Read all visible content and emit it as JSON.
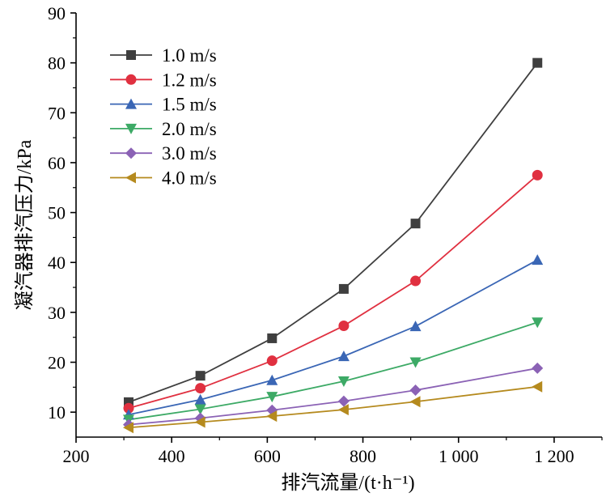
{
  "chart_data": {
    "type": "line",
    "xlabel": "排汽流量/(t·h⁻¹)",
    "ylabel": "凝汽器排汽压力/kPa",
    "xlim": [
      200,
      1300
    ],
    "ylim": [
      5,
      90
    ],
    "x_ticks": [
      200,
      400,
      600,
      800,
      1000,
      1200
    ],
    "x_tick_labels": [
      "200",
      "400",
      "600",
      "800",
      "1 000",
      "1 200"
    ],
    "y_ticks": [
      10,
      20,
      30,
      40,
      50,
      60,
      70,
      80,
      90
    ],
    "y_tick_labels": [
      "10",
      "20",
      "30",
      "40",
      "50",
      "60",
      "70",
      "80",
      "90"
    ],
    "x": [
      310,
      460,
      610,
      760,
      910,
      1165
    ],
    "legend_position": "top-left",
    "series": [
      {
        "name": "1.0 m/s",
        "color": "#3f3f3f",
        "marker": "square",
        "values": [
          12.0,
          17.3,
          24.8,
          34.7,
          47.8,
          80.0
        ]
      },
      {
        "name": "1.2 m/s",
        "color": "#e03040",
        "marker": "circle",
        "values": [
          10.8,
          14.8,
          20.3,
          27.3,
          36.3,
          57.5
        ]
      },
      {
        "name": "1.5 m/s",
        "color": "#3a66b5",
        "marker": "triangle-up",
        "values": [
          9.5,
          12.5,
          16.4,
          21.2,
          27.2,
          40.5
        ]
      },
      {
        "name": "2.0 m/s",
        "color": "#3daa66",
        "marker": "triangle-down",
        "values": [
          8.5,
          10.6,
          13.1,
          16.2,
          20.0,
          28.0
        ]
      },
      {
        "name": "3.0 m/s",
        "color": "#8b62b5",
        "marker": "diamond",
        "values": [
          7.5,
          8.8,
          10.4,
          12.2,
          14.4,
          18.8
        ]
      },
      {
        "name": "4.0 m/s",
        "color": "#b58a1e",
        "marker": "triangle-left",
        "values": [
          6.9,
          8.0,
          9.2,
          10.5,
          12.1,
          15.1
        ]
      }
    ]
  }
}
